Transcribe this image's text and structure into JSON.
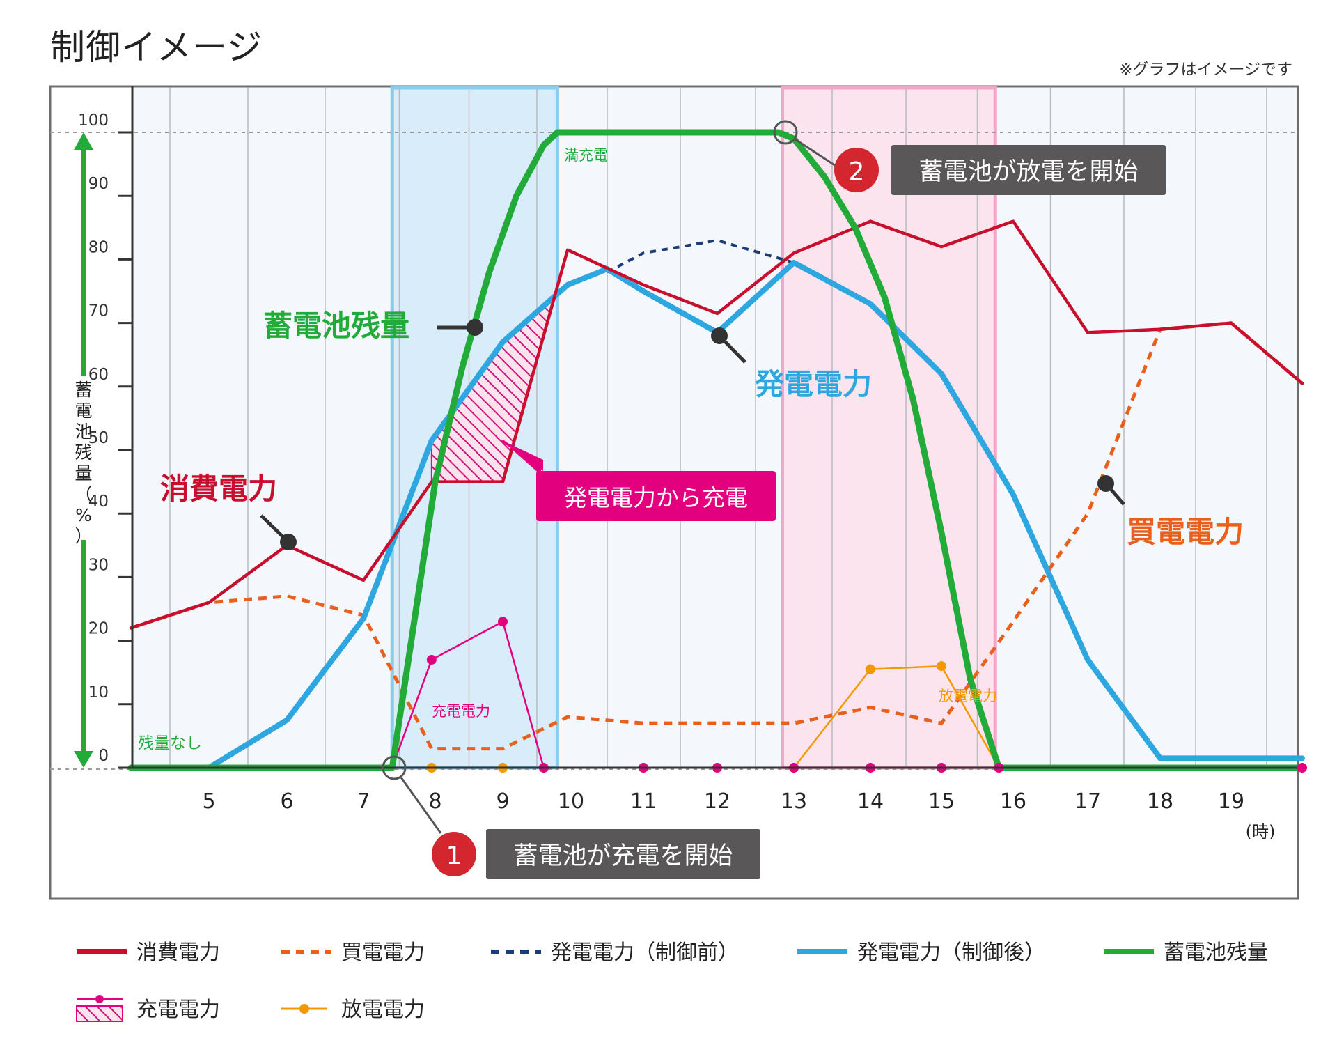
{
  "page": {
    "title": "制御イメージ",
    "note": "※グラフはイメージです"
  },
  "chart_data": {
    "type": "line",
    "y_axis": {
      "label": "蓄電池残量（%）",
      "min": 0,
      "max": 100,
      "ticks": [
        0,
        10,
        20,
        30,
        40,
        50,
        60,
        70,
        80,
        90,
        100
      ]
    },
    "x_axis": {
      "unit": "(時)",
      "ticks": [
        5,
        6,
        7,
        8,
        9,
        10,
        11,
        12,
        13,
        14,
        15,
        16,
        17,
        18,
        19
      ],
      "range": [
        4,
        20
      ]
    },
    "series": [
      {
        "name": "消費電力",
        "color": "#c8102e",
        "style": "solid",
        "x": [
          4,
          5,
          6,
          7,
          7.95,
          9,
          9.95,
          11,
          12,
          13,
          14,
          15,
          16,
          17,
          18,
          19,
          20
        ],
        "y": [
          22,
          26,
          35,
          29.5,
          45,
          45,
          81.5,
          76,
          71.5,
          81,
          86,
          82,
          86,
          68.5,
          69,
          70,
          60.5
        ]
      },
      {
        "name": "買電電力",
        "color": "#e8601c",
        "style": "dashed",
        "x": [
          4,
          5,
          6,
          7,
          7.95,
          9,
          9.95,
          11,
          12,
          13,
          14,
          15,
          16,
          17,
          18,
          19,
          20
        ],
        "y": [
          22,
          26,
          27,
          24,
          3,
          3,
          8,
          7,
          7,
          7,
          9.5,
          7,
          23,
          40,
          69,
          70,
          60.5
        ]
      },
      {
        "name": "発電電力（制御前）",
        "color": "#1b3c77",
        "style": "dashed",
        "x": [
          10.5,
          11,
          12,
          13
        ],
        "y": [
          78,
          81,
          83,
          79.5
        ]
      },
      {
        "name": "発電電力（制御後）",
        "color": "#2ea7e0",
        "style": "solid",
        "x": [
          5,
          6,
          7,
          7.95,
          9,
          9.95,
          10.5,
          11,
          12,
          13,
          14,
          15,
          16,
          17,
          18,
          19,
          20
        ],
        "y": [
          0,
          7.5,
          23.5,
          51.5,
          67,
          76,
          78.5,
          75,
          68.5,
          79.5,
          73,
          62,
          43,
          17,
          1.5,
          1.5,
          1.5
        ]
      },
      {
        "name": "蓄電池残量",
        "color": "#22ab38",
        "style": "solid",
        "x": [
          4,
          7.4,
          8,
          8.4,
          8.8,
          9.2,
          9.6,
          9.8,
          12.8,
          13,
          13.4,
          13.8,
          14.2,
          14.6,
          15,
          15.4,
          15.8,
          20
        ],
        "y": [
          0,
          0,
          45,
          63,
          78,
          90,
          98,
          100,
          100,
          99,
          93,
          85,
          74,
          58,
          37,
          14,
          0,
          0
        ]
      },
      {
        "name": "充電電力",
        "color": "#e3007f",
        "style": "solid-dots",
        "x": [
          4,
          7.4,
          7.95,
          9,
          9.6,
          11,
          12,
          13,
          14,
          15,
          15.8,
          20
        ],
        "y": [
          0,
          0,
          17,
          23,
          0,
          0,
          0,
          0,
          0,
          0,
          0,
          0
        ]
      },
      {
        "name": "放電電力",
        "color": "#f39800",
        "style": "solid-dots",
        "x": [
          7.4,
          7.95,
          9,
          13,
          14,
          15,
          15.8
        ],
        "y": [
          0,
          0,
          0,
          0,
          15.5,
          16,
          0
        ]
      }
    ],
    "charge_window": [
      7.4,
      9.8
    ],
    "discharge_window": [
      12.85,
      15.75
    ],
    "annotations": {
      "full": "満充電",
      "empty": "残量なし",
      "charge_label": "充電電力",
      "discharge_label": "放電電力",
      "step1_num": "1",
      "step1": "蓄電池が充電を開始",
      "step2_num": "2",
      "step2": "蓄電池が放電を開始",
      "area_charge": "発電電力から充電",
      "big_battery": "蓄電池残量",
      "big_consumption": "消費電力",
      "big_generation": "発電電力",
      "big_purchase": "買電電力"
    },
    "legend": [
      {
        "label": "消費電力",
        "color": "#c8102e",
        "style": "solid"
      },
      {
        "label": "買電電力",
        "color": "#e8601c",
        "style": "dashed"
      },
      {
        "label": "発電電力（制御前）",
        "color": "#1b3c77",
        "style": "dashed"
      },
      {
        "label": "発電電力（制御後）",
        "color": "#2ea7e0",
        "style": "solid"
      },
      {
        "label": "蓄電池残量",
        "color": "#22ab38",
        "style": "solid"
      },
      {
        "label": "充電電力",
        "color": "#e3007f",
        "style": "hatch"
      },
      {
        "label": "放電電力",
        "color": "#f39800",
        "style": "dot"
      }
    ]
  }
}
